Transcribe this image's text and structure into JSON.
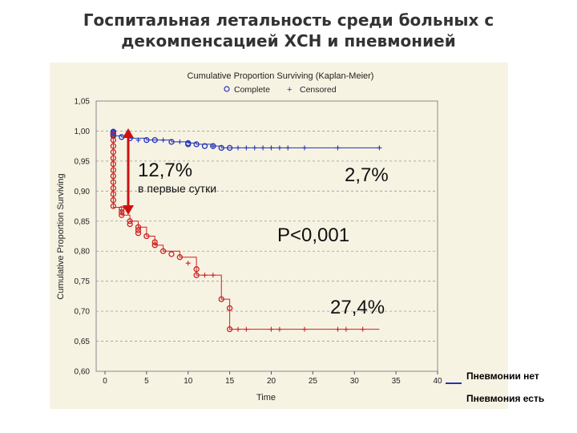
{
  "slide": {
    "title_line1": "Госпитальная летальность среди больных с",
    "title_line2": "декомпенсацией ХСН и пневмонией"
  },
  "annotations": {
    "first_day_pct": "12,7%",
    "first_day_label": "в первые сутки",
    "no_pneumonia_pct": "2,7%",
    "p_value": "P<0,001",
    "pneumonia_pct": "27,4%"
  },
  "legend": {
    "no_pneumonia": "Пневмонии нет",
    "pneumonia": "Пневмония есть"
  },
  "colors": {
    "no_pneumonia": "#2233bb",
    "pneumonia": "#cc2222",
    "arrow": "#cc1111",
    "panel": "#f7f3e3"
  },
  "chart_data": {
    "type": "line",
    "step": true,
    "title": "Cumulative Proportion Surviving (Kaplan-Meier)",
    "legend_entries": [
      "Complete",
      "Censored"
    ],
    "xlabel": "Time",
    "ylabel": "Cumulative Proportion Surviving",
    "xlim": [
      0,
      40
    ],
    "ylim": [
      0.6,
      1.05
    ],
    "x_ticks": [
      "0",
      "5",
      "10",
      "15",
      "20",
      "25",
      "30",
      "35",
      "40"
    ],
    "y_ticks": [
      "1,05",
      "1,00",
      "0,95",
      "0,90",
      "0,85",
      "0,80",
      "0,75",
      "0,70",
      "0,65",
      "0,60"
    ],
    "series": [
      {
        "name": "Пневмонии нет",
        "steps": [
          [
            1,
            1.0
          ],
          [
            1,
            0.992
          ],
          [
            2,
            0.99
          ],
          [
            3,
            0.988
          ],
          [
            5,
            0.985
          ],
          [
            8,
            0.982
          ],
          [
            10,
            0.98
          ],
          [
            11,
            0.978
          ],
          [
            13,
            0.975
          ],
          [
            14,
            0.972
          ],
          [
            33,
            0.972
          ]
        ],
        "events": [
          [
            1,
            0.999
          ],
          [
            1,
            0.997
          ],
          [
            1,
            0.995
          ],
          [
            1,
            0.993
          ],
          [
            1,
            0.992
          ],
          [
            2,
            0.99
          ],
          [
            3,
            0.988
          ],
          [
            5,
            0.985
          ],
          [
            6,
            0.985
          ],
          [
            8,
            0.982
          ],
          [
            10,
            0.98
          ],
          [
            10,
            0.978
          ],
          [
            11,
            0.978
          ],
          [
            12,
            0.975
          ],
          [
            13,
            0.975
          ],
          [
            14,
            0.972
          ],
          [
            15,
            0.972
          ]
        ],
        "censored": [
          [
            4,
            0.985
          ],
          [
            7,
            0.985
          ],
          [
            9,
            0.982
          ],
          [
            13,
            0.975
          ],
          [
            16,
            0.972
          ],
          [
            17,
            0.972
          ],
          [
            18,
            0.972
          ],
          [
            19,
            0.972
          ],
          [
            20,
            0.972
          ],
          [
            21,
            0.972
          ],
          [
            22,
            0.972
          ],
          [
            24,
            0.972
          ],
          [
            28,
            0.972
          ],
          [
            33,
            0.972
          ]
        ]
      },
      {
        "name": "Пневмония есть",
        "steps": [
          [
            1,
            1.0
          ],
          [
            1,
            0.873
          ],
          [
            2,
            0.87
          ],
          [
            2,
            0.86
          ],
          [
            3,
            0.85
          ],
          [
            4,
            0.84
          ],
          [
            5,
            0.825
          ],
          [
            6,
            0.81
          ],
          [
            7,
            0.8
          ],
          [
            9,
            0.79
          ],
          [
            11,
            0.77
          ],
          [
            11,
            0.76
          ],
          [
            14,
            0.76
          ],
          [
            14,
            0.72
          ],
          [
            15,
            0.71
          ],
          [
            15,
            0.67
          ],
          [
            33,
            0.67
          ]
        ],
        "events": [
          [
            1,
            0.995
          ],
          [
            1,
            0.985
          ],
          [
            1,
            0.975
          ],
          [
            1,
            0.965
          ],
          [
            1,
            0.955
          ],
          [
            1,
            0.945
          ],
          [
            1,
            0.935
          ],
          [
            1,
            0.925
          ],
          [
            1,
            0.915
          ],
          [
            1,
            0.905
          ],
          [
            1,
            0.895
          ],
          [
            1,
            0.885
          ],
          [
            1,
            0.875
          ],
          [
            2,
            0.87
          ],
          [
            2,
            0.865
          ],
          [
            2,
            0.86
          ],
          [
            3,
            0.85
          ],
          [
            3,
            0.845
          ],
          [
            4,
            0.84
          ],
          [
            4,
            0.835
          ],
          [
            4,
            0.83
          ],
          [
            5,
            0.825
          ],
          [
            6,
            0.815
          ],
          [
            6,
            0.81
          ],
          [
            7,
            0.8
          ],
          [
            8,
            0.795
          ],
          [
            9,
            0.79
          ],
          [
            11,
            0.77
          ],
          [
            11,
            0.76
          ],
          [
            14,
            0.72
          ],
          [
            15,
            0.705
          ],
          [
            15,
            0.67
          ]
        ],
        "censored": [
          [
            10,
            0.78
          ],
          [
            12,
            0.76
          ],
          [
            13,
            0.76
          ],
          [
            16,
            0.67
          ],
          [
            17,
            0.67
          ],
          [
            20,
            0.67
          ],
          [
            21,
            0.67
          ],
          [
            24,
            0.67
          ],
          [
            28,
            0.67
          ],
          [
            29,
            0.67
          ],
          [
            31,
            0.67
          ]
        ]
      }
    ]
  }
}
